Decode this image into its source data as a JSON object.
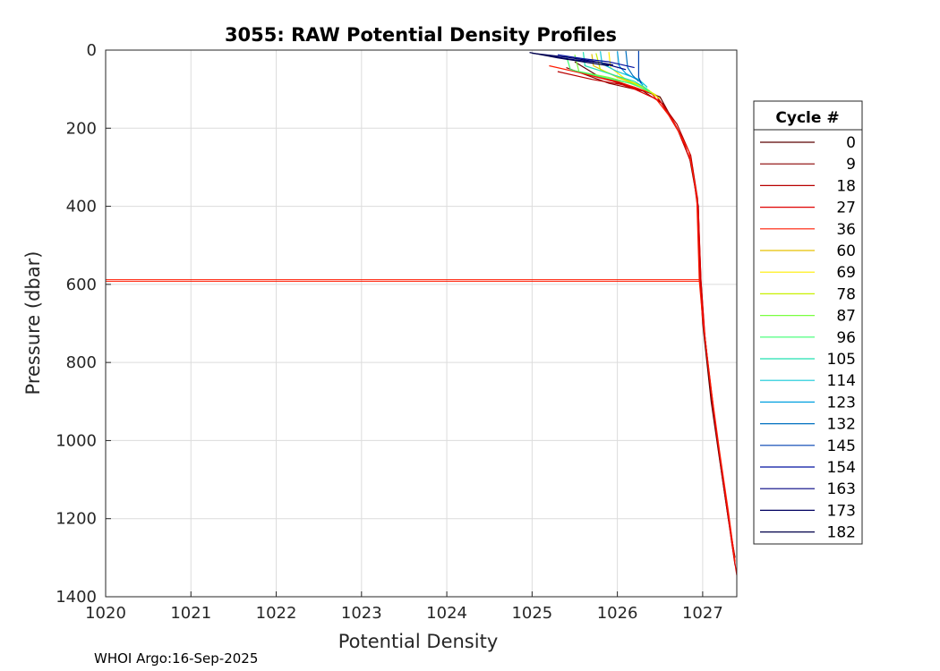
{
  "chart_data": {
    "type": "line",
    "title": "3055: RAW Potential Density Profiles",
    "xlabel": "Potential Density",
    "ylabel": "Pressure (dbar)",
    "xlim": [
      1020,
      1027.4
    ],
    "ylim": [
      0,
      1400
    ],
    "y_reversed": true,
    "grid": true,
    "x_ticks": [
      1020,
      1021,
      1022,
      1023,
      1024,
      1025,
      1026,
      1027
    ],
    "y_ticks": [
      0,
      200,
      400,
      600,
      800,
      1000,
      1200,
      1400
    ],
    "legend": {
      "title": "Cycle #",
      "placement": "right-outside",
      "entries": [
        {
          "label": "0",
          "color": "#5a0000"
        },
        {
          "label": "9",
          "color": "#8a0000"
        },
        {
          "label": "18",
          "color": "#b80000"
        },
        {
          "label": "27",
          "color": "#e00000"
        },
        {
          "label": "36",
          "color": "#ff1a00"
        },
        {
          "label": "60",
          "color": "#e6c000"
        },
        {
          "label": "69",
          "color": "#ffee00"
        },
        {
          "label": "78",
          "color": "#c8f000"
        },
        {
          "label": "87",
          "color": "#7aff40"
        },
        {
          "label": "96",
          "color": "#3cff70"
        },
        {
          "label": "105",
          "color": "#20e0b0"
        },
        {
          "label": "114",
          "color": "#10c8d8"
        },
        {
          "label": "123",
          "color": "#00a0e0"
        },
        {
          "label": "132",
          "color": "#0070c0"
        },
        {
          "label": "145",
          "color": "#0040b0"
        },
        {
          "label": "154",
          "color": "#0010a0"
        },
        {
          "label": "163",
          "color": "#000080"
        },
        {
          "label": "173",
          "color": "#000060"
        },
        {
          "label": "182",
          "color": "#00004a"
        }
      ]
    },
    "series": [
      {
        "name": "0",
        "color": "#5a0000",
        "points": [
          [
            1025.5,
            30
          ],
          [
            1025.8,
            70
          ],
          [
            1026.2,
            95
          ],
          [
            1026.5,
            120
          ],
          [
            1026.7,
            200
          ],
          [
            1026.85,
            280
          ],
          [
            1026.95,
            400
          ],
          [
            1026.97,
            590
          ],
          [
            1027.0,
            700
          ],
          [
            1027.1,
            900
          ],
          [
            1027.2,
            1050
          ],
          [
            1027.3,
            1200
          ],
          [
            1027.38,
            1300
          ]
        ]
      },
      {
        "name": "9",
        "color": "#8a0000",
        "points": [
          [
            1025.4,
            45
          ],
          [
            1025.9,
            85
          ],
          [
            1026.3,
            105
          ],
          [
            1026.55,
            140
          ],
          [
            1026.75,
            220
          ],
          [
            1026.88,
            300
          ],
          [
            1026.95,
            420
          ],
          [
            1026.98,
            590
          ],
          [
            1027.02,
            720
          ],
          [
            1027.12,
            920
          ],
          [
            1027.22,
            1080
          ],
          [
            1027.32,
            1230
          ],
          [
            1027.38,
            1320
          ]
        ]
      },
      {
        "name": "18",
        "color": "#b80000",
        "points": [
          [
            1025.3,
            55
          ],
          [
            1025.7,
            75
          ],
          [
            1026.1,
            90
          ],
          [
            1026.45,
            115
          ],
          [
            1026.7,
            190
          ],
          [
            1026.86,
            270
          ],
          [
            1026.94,
            380
          ],
          [
            1026.97,
            590
          ],
          [
            1027.0,
            680
          ],
          [
            1027.1,
            880
          ],
          [
            1027.2,
            1040
          ],
          [
            1027.3,
            1190
          ],
          [
            1027.37,
            1290
          ]
        ]
      },
      {
        "name": "27",
        "color": "#e00000",
        "points": [
          [
            1025.6,
            60
          ],
          [
            1025.95,
            80
          ],
          [
            1026.2,
            100
          ],
          [
            1026.5,
            130
          ],
          [
            1026.72,
            210
          ],
          [
            1026.87,
            290
          ],
          [
            1026.95,
            410
          ],
          [
            1026.98,
            590
          ],
          [
            1027.03,
            740
          ],
          [
            1027.14,
            940
          ],
          [
            1027.24,
            1100
          ],
          [
            1027.34,
            1260
          ],
          [
            1027.4,
            1345
          ]
        ]
      },
      {
        "name": "36",
        "color": "#ff1a00",
        "points": [
          [
            1025.2,
            40
          ],
          [
            1025.6,
            60
          ],
          [
            1026.0,
            80
          ],
          [
            1026.4,
            110
          ],
          [
            1026.65,
            180
          ],
          [
            1026.84,
            260
          ],
          [
            1026.93,
            370
          ],
          [
            1026.96,
            590
          ],
          [
            1027.0,
            690
          ],
          [
            1027.1,
            870
          ],
          [
            1027.2,
            1030
          ],
          [
            1027.3,
            1180
          ],
          [
            1027.38,
            1310
          ]
        ]
      },
      {
        "name": "60",
        "color": "#e6c000",
        "points": [
          [
            1025.7,
            10
          ],
          [
            1025.72,
            40
          ],
          [
            1026.0,
            70
          ],
          [
            1026.3,
            95
          ],
          [
            1026.45,
            115
          ]
        ]
      },
      {
        "name": "69",
        "color": "#ffee00",
        "points": [
          [
            1025.9,
            5
          ],
          [
            1025.92,
            45
          ],
          [
            1026.1,
            75
          ],
          [
            1026.35,
            100
          ],
          [
            1026.5,
            125
          ]
        ]
      },
      {
        "name": "78",
        "color": "#c8f000",
        "points": [
          [
            1025.75,
            8
          ],
          [
            1025.8,
            50
          ],
          [
            1026.05,
            72
          ],
          [
            1026.3,
            92
          ],
          [
            1026.45,
            118
          ]
        ]
      },
      {
        "name": "87",
        "color": "#7aff40",
        "points": [
          [
            1025.5,
            12
          ],
          [
            1025.55,
            55
          ],
          [
            1025.9,
            70
          ],
          [
            1026.2,
            88
          ],
          [
            1026.4,
            110
          ]
        ]
      },
      {
        "name": "96",
        "color": "#3cff70",
        "points": [
          [
            1025.4,
            15
          ],
          [
            1025.45,
            50
          ],
          [
            1025.8,
            68
          ],
          [
            1026.15,
            85
          ],
          [
            1026.38,
            105
          ]
        ]
      },
      {
        "name": "105",
        "color": "#20e0b0",
        "points": [
          [
            1025.6,
            5
          ],
          [
            1025.62,
            40
          ],
          [
            1025.9,
            60
          ],
          [
            1026.2,
            80
          ],
          [
            1026.35,
            100
          ]
        ]
      },
      {
        "name": "114",
        "color": "#10c8d8",
        "points": [
          [
            1025.8,
            3
          ],
          [
            1025.82,
            35
          ],
          [
            1026.0,
            55
          ],
          [
            1026.25,
            75
          ],
          [
            1026.35,
            95
          ]
        ]
      },
      {
        "name": "123",
        "color": "#00a0e0",
        "points": [
          [
            1026.0,
            3
          ],
          [
            1026.02,
            40
          ],
          [
            1026.1,
            60
          ],
          [
            1026.25,
            78
          ],
          [
            1026.3,
            90
          ]
        ]
      },
      {
        "name": "132",
        "color": "#0070c0",
        "points": [
          [
            1026.1,
            2
          ],
          [
            1026.12,
            45
          ],
          [
            1026.18,
            65
          ],
          [
            1026.25,
            80
          ]
        ]
      },
      {
        "name": "145",
        "color": "#0040b0",
        "points": [
          [
            1026.25,
            2
          ],
          [
            1026.25,
            70
          ],
          [
            1026.28,
            85
          ]
        ]
      },
      {
        "name": "154",
        "color": "#0010a0",
        "points": [
          [
            1025.3,
            12
          ],
          [
            1025.6,
            22
          ],
          [
            1025.9,
            30
          ],
          [
            1026.2,
            45
          ]
        ]
      },
      {
        "name": "163",
        "color": "#000080",
        "points": [
          [
            1025.2,
            15
          ],
          [
            1025.5,
            25
          ],
          [
            1025.8,
            32
          ],
          [
            1026.1,
            50
          ]
        ]
      },
      {
        "name": "173",
        "color": "#000060",
        "points": [
          [
            1025.0,
            8
          ],
          [
            1025.4,
            18
          ],
          [
            1025.7,
            28
          ],
          [
            1025.95,
            38
          ]
        ]
      },
      {
        "name": "182",
        "color": "#00004a",
        "points": [
          [
            1024.97,
            6
          ],
          [
            1025.3,
            20
          ],
          [
            1025.6,
            30
          ],
          [
            1025.9,
            40
          ]
        ]
      }
    ],
    "spike": {
      "name": "36",
      "color": "#ff1a00",
      "points": [
        [
          1026.97,
          588
        ],
        [
          1020.0,
          588
        ],
        [
          1020.0,
          592
        ],
        [
          1026.97,
          592
        ]
      ]
    }
  },
  "footer": "WHOI Argo:16-Sep-2025"
}
